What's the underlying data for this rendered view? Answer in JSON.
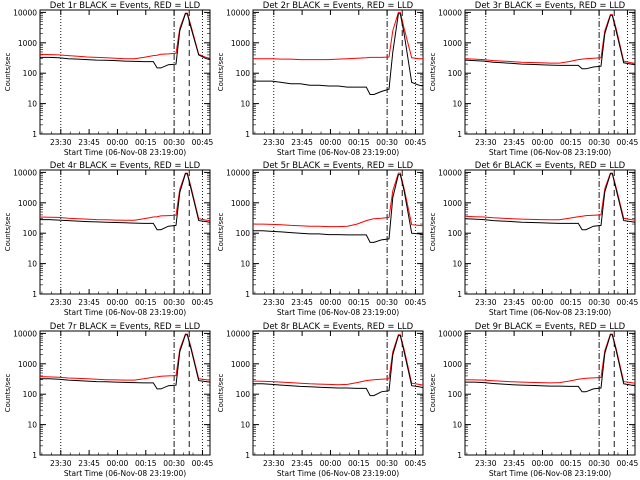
{
  "colors": {
    "events": "#000000",
    "lld": "#ff0000",
    "background": "#ffffff"
  },
  "chart_data": [
    {
      "type": "line",
      "title": "Det 1r BLACK = Events, RED = LLD",
      "xlabel": "Start Time (06-Nov-08 23:19:00)",
      "ylabel": "Counts/sec",
      "xticks": [
        "23:30",
        "23:45",
        "00:00",
        "00:15",
        "00:30",
        "00:45"
      ],
      "yticks": [
        "1",
        "10",
        "100",
        "1000",
        "10000"
      ],
      "ylim": [
        1,
        12000
      ],
      "yscale": "log",
      "x_minutes": [
        0,
        5,
        10,
        15,
        20,
        25,
        30,
        35,
        40,
        45,
        50,
        55,
        60,
        62,
        64,
        68,
        72,
        74,
        77,
        78,
        80,
        84,
        88,
        90
      ],
      "series": [
        {
          "name": "Events",
          "values": [
            330,
            330,
            320,
            300,
            290,
            280,
            270,
            265,
            260,
            250,
            245,
            240,
            240,
            150,
            150,
            190,
            200,
            2500,
            9000,
            9000,
            3000,
            400,
            300,
            280
          ]
        },
        {
          "name": "LLD",
          "values": [
            420,
            410,
            400,
            380,
            360,
            340,
            330,
            320,
            310,
            300,
            300,
            330,
            380,
            390,
            420,
            430,
            450,
            3000,
            9500,
            9500,
            3500,
            420,
            330,
            310
          ]
        }
      ]
    },
    {
      "type": "line",
      "title": "Det 2r BLACK = Events, RED = LLD",
      "xlabel": "Start Time (06-Nov-08 23:19:00)",
      "ylabel": "Counts/sec",
      "xticks": [
        "23:30",
        "23:45",
        "00:00",
        "00:15",
        "00:30",
        "00:45"
      ],
      "yticks": [
        "1",
        "10",
        "100",
        "1000",
        "10000"
      ],
      "ylim": [
        1,
        12000
      ],
      "yscale": "log",
      "x_minutes": [
        0,
        5,
        10,
        15,
        20,
        25,
        30,
        35,
        40,
        45,
        50,
        55,
        60,
        62,
        64,
        68,
        72,
        74,
        77,
        78,
        80,
        84,
        88,
        90
      ],
      "series": [
        {
          "name": "Events",
          "values": [
            55,
            55,
            55,
            50,
            45,
            45,
            40,
            40,
            38,
            38,
            35,
            35,
            35,
            20,
            20,
            25,
            30,
            500,
            9000,
            9000,
            2000,
            50,
            40,
            38
          ]
        },
        {
          "name": "LLD",
          "values": [
            300,
            300,
            300,
            290,
            290,
            280,
            280,
            280,
            280,
            290,
            300,
            310,
            320,
            330,
            330,
            330,
            340,
            2500,
            10000,
            10000,
            3000,
            320,
            300,
            300
          ]
        }
      ]
    },
    {
      "type": "line",
      "title": "Det 3r BLACK = Events, RED = LLD",
      "xlabel": "Start Time (06-Nov-08 23:19:00)",
      "ylabel": "Counts/sec",
      "xticks": [
        "23:30",
        "23:45",
        "00:00",
        "00:15",
        "00:30",
        "00:45"
      ],
      "yticks": [
        "1",
        "10",
        "100",
        "1000",
        "10000"
      ],
      "ylim": [
        1,
        12000
      ],
      "yscale": "log",
      "x_minutes": [
        0,
        5,
        10,
        15,
        20,
        25,
        30,
        35,
        40,
        45,
        50,
        55,
        60,
        62,
        64,
        68,
        72,
        74,
        77,
        78,
        80,
        84,
        88,
        90
      ],
      "series": [
        {
          "name": "Events",
          "values": [
            270,
            260,
            250,
            230,
            220,
            210,
            200,
            195,
            190,
            185,
            180,
            180,
            180,
            140,
            140,
            160,
            170,
            2000,
            8000,
            8000,
            2500,
            220,
            200,
            190
          ]
        },
        {
          "name": "LLD",
          "values": [
            300,
            290,
            280,
            260,
            250,
            240,
            230,
            225,
            220,
            215,
            215,
            240,
            280,
            290,
            300,
            310,
            320,
            2500,
            8500,
            8500,
            3000,
            250,
            220,
            210
          ]
        }
      ]
    },
    {
      "type": "line",
      "title": "Det 4r BLACK = Events, RED = LLD",
      "xlabel": "Start Time (06-Nov-08 23:19:00)",
      "ylabel": "Counts/sec",
      "xticks": [
        "23:30",
        "23:45",
        "00:00",
        "00:15",
        "00:30",
        "00:45"
      ],
      "yticks": [
        "1",
        "10",
        "100",
        "1000",
        "10000"
      ],
      "ylim": [
        1,
        12000
      ],
      "yscale": "log",
      "x_minutes": [
        0,
        5,
        10,
        15,
        20,
        25,
        30,
        35,
        40,
        45,
        50,
        55,
        60,
        62,
        64,
        68,
        72,
        74,
        77,
        78,
        80,
        84,
        88,
        90
      ],
      "series": [
        {
          "name": "Events",
          "values": [
            280,
            280,
            270,
            260,
            250,
            240,
            235,
            230,
            225,
            220,
            215,
            210,
            210,
            130,
            130,
            170,
            180,
            2200,
            9000,
            9000,
            2800,
            260,
            240,
            230
          ]
        },
        {
          "name": "LLD",
          "values": [
            340,
            335,
            330,
            310,
            300,
            290,
            280,
            275,
            270,
            265,
            265,
            300,
            340,
            350,
            370,
            380,
            390,
            2800,
            9500,
            9500,
            3200,
            300,
            270,
            260
          ]
        }
      ]
    },
    {
      "type": "line",
      "title": "Det 5r BLACK = Events, RED = LLD",
      "xlabel": "Start Time (06-Nov-08 23:19:00)",
      "ylabel": "Counts/sec",
      "xticks": [
        "23:30",
        "23:45",
        "00:00",
        "00:15",
        "00:30",
        "00:45"
      ],
      "yticks": [
        "1",
        "10",
        "100",
        "1000",
        "10000"
      ],
      "ylim": [
        1,
        12000
      ],
      "yscale": "log",
      "x_minutes": [
        0,
        5,
        10,
        15,
        20,
        25,
        30,
        35,
        40,
        45,
        50,
        55,
        60,
        62,
        64,
        68,
        72,
        74,
        77,
        78,
        80,
        84,
        88,
        90
      ],
      "series": [
        {
          "name": "Events",
          "values": [
            120,
            120,
            115,
            110,
            105,
            100,
            95,
            95,
            90,
            90,
            88,
            88,
            88,
            50,
            50,
            60,
            65,
            1500,
            8500,
            8500,
            2500,
            100,
            95,
            90
          ]
        },
        {
          "name": "LLD",
          "values": [
            200,
            200,
            195,
            190,
            180,
            175,
            170,
            170,
            165,
            165,
            170,
            200,
            260,
            280,
            300,
            310,
            330,
            2500,
            9500,
            9500,
            3000,
            190,
            180,
            175
          ]
        }
      ]
    },
    {
      "type": "line",
      "title": "Det 6r BLACK = Events, RED = LLD",
      "xlabel": "Start Time (06-Nov-08 23:19:00)",
      "ylabel": "Counts/sec",
      "xticks": [
        "23:30",
        "23:45",
        "00:00",
        "00:15",
        "00:30",
        "00:45"
      ],
      "yticks": [
        "1",
        "10",
        "100",
        "1000",
        "10000"
      ],
      "ylim": [
        1,
        12000
      ],
      "yscale": "log",
      "x_minutes": [
        0,
        5,
        10,
        15,
        20,
        25,
        30,
        35,
        40,
        45,
        50,
        55,
        60,
        62,
        64,
        68,
        72,
        74,
        77,
        78,
        80,
        84,
        88,
        90
      ],
      "series": [
        {
          "name": "Events",
          "values": [
            300,
            290,
            280,
            260,
            250,
            240,
            230,
            225,
            220,
            215,
            210,
            210,
            210,
            130,
            130,
            170,
            180,
            2300,
            9000,
            9000,
            2800,
            260,
            240,
            230
          ]
        },
        {
          "name": "LLD",
          "values": [
            360,
            350,
            340,
            320,
            310,
            300,
            290,
            285,
            280,
            275,
            275,
            310,
            350,
            360,
            380,
            390,
            400,
            2900,
            9500,
            9500,
            3200,
            310,
            280,
            270
          ]
        }
      ]
    },
    {
      "type": "line",
      "title": "Det 7r BLACK = Events, RED = LLD",
      "xlabel": "Start Time (06-Nov-08 23:19:00)",
      "ylabel": "Counts/sec",
      "xticks": [
        "23:30",
        "23:45",
        "00:00",
        "00:15",
        "00:30",
        "00:45"
      ],
      "yticks": [
        "1",
        "10",
        "100",
        "1000",
        "10000"
      ],
      "ylim": [
        1,
        12000
      ],
      "yscale": "log",
      "x_minutes": [
        0,
        5,
        10,
        15,
        20,
        25,
        30,
        35,
        40,
        45,
        50,
        55,
        60,
        62,
        64,
        68,
        72,
        74,
        77,
        78,
        80,
        84,
        88,
        90
      ],
      "series": [
        {
          "name": "Events",
          "values": [
            320,
            320,
            310,
            290,
            280,
            270,
            260,
            255,
            250,
            245,
            240,
            235,
            235,
            150,
            150,
            190,
            200,
            2500,
            9000,
            9000,
            3000,
            280,
            260,
            250
          ]
        },
        {
          "name": "LLD",
          "values": [
            380,
            370,
            360,
            340,
            330,
            320,
            310,
            300,
            295,
            290,
            290,
            320,
            360,
            370,
            390,
            400,
            410,
            3000,
            9500,
            9500,
            3400,
            320,
            300,
            290
          ]
        }
      ]
    },
    {
      "type": "line",
      "title": "Det 8r BLACK = Events, RED = LLD",
      "xlabel": "Start Time (06-Nov-08 23:19:00)",
      "ylabel": "Counts/sec",
      "xticks": [
        "23:30",
        "23:45",
        "00:00",
        "00:15",
        "00:30",
        "00:45"
      ],
      "yticks": [
        "1",
        "10",
        "100",
        "1000",
        "10000"
      ],
      "ylim": [
        1,
        12000
      ],
      "yscale": "log",
      "x_minutes": [
        0,
        5,
        10,
        15,
        20,
        25,
        30,
        35,
        40,
        45,
        50,
        55,
        60,
        62,
        64,
        68,
        72,
        74,
        77,
        78,
        80,
        84,
        88,
        90
      ],
      "series": [
        {
          "name": "Events",
          "values": [
            220,
            220,
            210,
            200,
            190,
            180,
            175,
            170,
            165,
            160,
            160,
            155,
            155,
            90,
            90,
            120,
            130,
            2000,
            8500,
            8500,
            2500,
            190,
            175,
            165
          ]
        },
        {
          "name": "LLD",
          "values": [
            270,
            265,
            260,
            250,
            240,
            230,
            220,
            215,
            210,
            205,
            210,
            240,
            280,
            290,
            300,
            310,
            320,
            2500,
            9000,
            9000,
            3000,
            230,
            210,
            200
          ]
        }
      ]
    },
    {
      "type": "line",
      "title": "Det 9r BLACK = Events, RED = LLD",
      "xlabel": "Start Time (06-Nov-08 23:19:00)",
      "ylabel": "Counts/sec",
      "xticks": [
        "23:30",
        "23:45",
        "00:00",
        "00:15",
        "00:30",
        "00:45"
      ],
      "yticks": [
        "1",
        "10",
        "100",
        "1000",
        "10000"
      ],
      "ylim": [
        1,
        12000
      ],
      "yscale": "log",
      "x_minutes": [
        0,
        5,
        10,
        15,
        20,
        25,
        30,
        35,
        40,
        45,
        50,
        55,
        60,
        62,
        64,
        68,
        72,
        74,
        77,
        78,
        80,
        84,
        88,
        90
      ],
      "series": [
        {
          "name": "Events",
          "values": [
            250,
            250,
            240,
            225,
            215,
            205,
            200,
            195,
            190,
            185,
            185,
            180,
            180,
            120,
            120,
            150,
            160,
            2200,
            9000,
            9000,
            2800,
            220,
            200,
            190
          ]
        },
        {
          "name": "LLD",
          "values": [
            300,
            295,
            290,
            275,
            265,
            255,
            250,
            245,
            240,
            235,
            240,
            270,
            310,
            320,
            335,
            345,
            355,
            2700,
            9500,
            9500,
            3200,
            260,
            240,
            230
          ]
        }
      ]
    }
  ],
  "time_axis": {
    "x_min_minutes": 0,
    "x_max_minutes": 90,
    "tick_minutes": [
      11,
      26,
      41,
      56,
      71,
      86
    ]
  },
  "markers": {
    "dotted_minutes": [
      11,
      86
    ],
    "dashdot_minutes": [
      71
    ],
    "dashed_minutes": [
      79
    ]
  }
}
